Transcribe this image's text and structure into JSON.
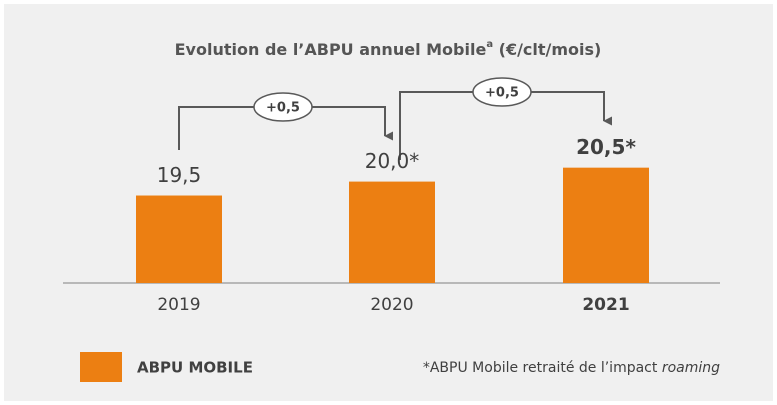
{
  "chart_data": {
    "type": "bar",
    "title": "Evolution de l’ABPU annuel Mobile",
    "title_superscript": "a",
    "title_suffix": " (€/clt/mois)",
    "categories": [
      "2019",
      "2020",
      "2021"
    ],
    "series": [
      {
        "name": "ABPU MOBILE",
        "color": "#ec7f12",
        "values": [
          19.5,
          20.0,
          20.5
        ],
        "value_labels": [
          "19,5",
          "20,0*",
          "20,5*"
        ]
      }
    ],
    "emphasis": [
      false,
      false,
      true
    ],
    "ylim": [
      16.36,
      24.4
    ],
    "annotations": [
      "+0,5",
      "+0,5"
    ],
    "footnote": "*ABPU Mobile retraité de l’impact ",
    "footnote_emphasis": "roaming"
  }
}
